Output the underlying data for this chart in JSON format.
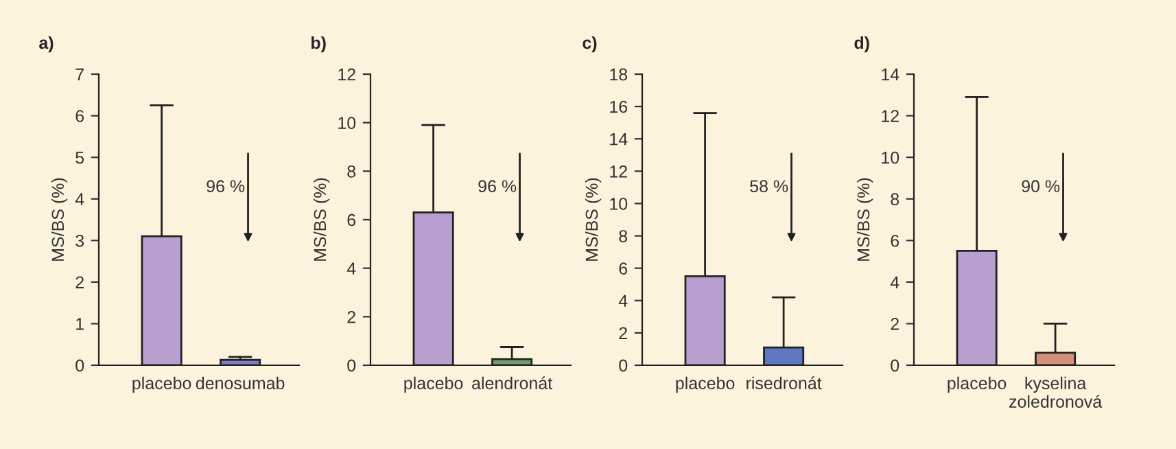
{
  "chart_data": [
    {
      "type": "bar",
      "title": "a)",
      "ylabel": "MS/BS (%)",
      "categories": [
        "placebo",
        "denosumab"
      ],
      "values": [
        3.1,
        0.13
      ],
      "colors": [
        "#b99fcf",
        "#7b7fc2"
      ],
      "errors": [
        [
          3.1,
          6.25
        ],
        [
          0.13,
          0.2
        ]
      ],
      "ylim": [
        0,
        7
      ],
      "yticks": [
        0,
        1,
        2,
        3,
        4,
        5,
        6,
        7
      ],
      "annotations": [
        "96 %"
      ]
    },
    {
      "type": "bar",
      "title": "b)",
      "ylabel": "MS/BS (%)",
      "categories": [
        "placebo",
        "alendronát"
      ],
      "values": [
        6.3,
        0.25
      ],
      "colors": [
        "#b99fcf",
        "#6e9d6e"
      ],
      "errors": [
        [
          6.3,
          9.9
        ],
        [
          0.25,
          0.75
        ]
      ],
      "ylim": [
        0,
        12
      ],
      "yticks": [
        0,
        2,
        4,
        6,
        8,
        10,
        12
      ],
      "annotations": [
        "96 %"
      ]
    },
    {
      "type": "bar",
      "title": "c)",
      "ylabel": "MS/BS (%)",
      "categories": [
        "placebo",
        "risedronát"
      ],
      "values": [
        5.5,
        1.1
      ],
      "colors": [
        "#b99fcf",
        "#5f78c2"
      ],
      "errors": [
        [
          5.5,
          15.6
        ],
        [
          1.1,
          4.2
        ]
      ],
      "ylim": [
        0,
        18
      ],
      "yticks": [
        0,
        2,
        4,
        6,
        8,
        10,
        12,
        14,
        16,
        18
      ],
      "annotations": [
        "58 %"
      ]
    },
    {
      "type": "bar",
      "title": "d)",
      "ylabel": "MS/BS (%)",
      "categories": [
        "placebo",
        "kyselina\nzoledronová"
      ],
      "values": [
        5.5,
        0.6
      ],
      "colors": [
        "#b99fcf",
        "#d4917a"
      ],
      "errors": [
        [
          5.5,
          12.9
        ],
        [
          0.6,
          2.0
        ]
      ],
      "ylim": [
        0,
        14
      ],
      "yticks": [
        0,
        2,
        4,
        6,
        8,
        10,
        12,
        14
      ],
      "annotations": [
        "90 %"
      ]
    }
  ]
}
